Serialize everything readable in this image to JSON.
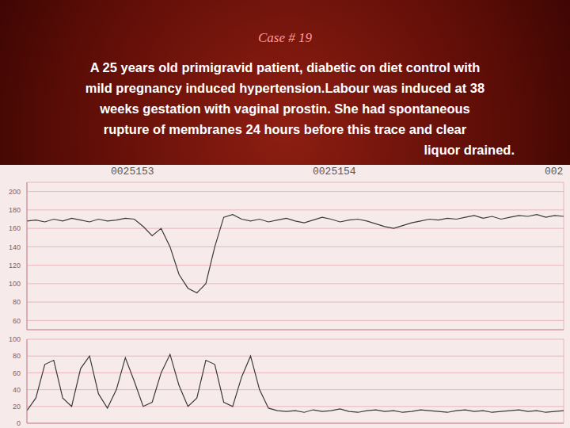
{
  "slide": {
    "title": "Case # 19",
    "text_lines": [
      "A 25 years old primigravid patient, diabetic on diet control with",
      "mild pregnancy induced hypertension.Labour was induced at 38",
      "weeks gestation with vaginal prostin. She had spontaneous",
      "rupture of membranes 24 hours before this trace and clear",
      "liquor drained."
    ],
    "page_numbers": [
      "0025153",
      "0025154",
      "002"
    ]
  },
  "chart_data": [
    {
      "type": "line",
      "grid": true,
      "tick_labels": "y",
      "color": "#3a3a3a",
      "xlim": [
        0,
        30
      ],
      "xticks": [
        0,
        1,
        2,
        3,
        4,
        5,
        6,
        7,
        8,
        9,
        10,
        11,
        12,
        13,
        14,
        15,
        16,
        17,
        18,
        19,
        20,
        21,
        22,
        23,
        24,
        25,
        26,
        27,
        28,
        29,
        30
      ],
      "ylim": [
        50,
        210
      ],
      "yticks": [
        60,
        80,
        100,
        120,
        140,
        160,
        180,
        200
      ],
      "x": [
        0,
        0.5,
        1,
        1.5,
        2,
        2.5,
        3,
        3.5,
        4,
        4.5,
        5,
        5.5,
        6,
        6.5,
        7,
        7.5,
        8,
        8.5,
        9,
        9.5,
        10,
        10.5,
        11,
        11.5,
        12,
        12.5,
        13,
        13.5,
        14,
        14.5,
        15,
        15.5,
        16,
        16.5,
        17,
        17.5,
        18,
        18.5,
        19,
        19.5,
        20,
        20.5,
        21,
        21.5,
        22,
        22.5,
        23,
        23.5,
        24,
        24.5,
        25,
        25.5,
        26,
        26.5,
        27,
        27.5,
        28,
        28.5,
        29,
        29.5,
        30
      ],
      "values": [
        168,
        169,
        167,
        170,
        168,
        171,
        169,
        167,
        170,
        168,
        169,
        171,
        170,
        162,
        152,
        160,
        140,
        110,
        95,
        90,
        100,
        140,
        172,
        175,
        170,
        168,
        170,
        167,
        169,
        171,
        168,
        166,
        169,
        172,
        170,
        167,
        169,
        170,
        168,
        165,
        162,
        160,
        163,
        166,
        168,
        170,
        169,
        171,
        170,
        172,
        174,
        171,
        173,
        170,
        172,
        174,
        173,
        175,
        172,
        174,
        173
      ]
    },
    {
      "type": "line",
      "grid": true,
      "tick_labels": "y",
      "color": "#3a3a3a",
      "xlim": [
        0,
        30
      ],
      "xticks": [
        0,
        1,
        2,
        3,
        4,
        5,
        6,
        7,
        8,
        9,
        10,
        11,
        12,
        13,
        14,
        15,
        16,
        17,
        18,
        19,
        20,
        21,
        22,
        23,
        24,
        25,
        26,
        27,
        28,
        29,
        30
      ],
      "ylim": [
        0,
        100
      ],
      "yticks": [
        0,
        20,
        40,
        60,
        80,
        100
      ],
      "x": [
        0,
        0.5,
        1,
        1.5,
        2,
        2.5,
        3,
        3.5,
        4,
        4.5,
        5,
        5.5,
        6,
        6.5,
        7,
        7.5,
        8,
        8.5,
        9,
        9.5,
        10,
        10.5,
        11,
        11.5,
        12,
        12.5,
        13,
        13.5,
        14,
        14.5,
        15,
        15.5,
        16,
        16.5,
        17,
        17.5,
        18,
        18.5,
        19,
        19.5,
        20,
        20.5,
        21,
        21.5,
        22,
        22.5,
        23,
        23.5,
        24,
        24.5,
        25,
        25.5,
        26,
        26.5,
        27,
        27.5,
        28,
        28.5,
        29,
        29.5,
        30
      ],
      "values": [
        15,
        30,
        70,
        75,
        30,
        20,
        65,
        80,
        35,
        18,
        40,
        78,
        50,
        20,
        25,
        60,
        82,
        45,
        20,
        30,
        75,
        70,
        25,
        20,
        55,
        80,
        40,
        18,
        15,
        14,
        15,
        13,
        16,
        14,
        15,
        17,
        14,
        13,
        15,
        16,
        14,
        15,
        13,
        14,
        16,
        15,
        14,
        13,
        15,
        16,
        14,
        15,
        13,
        14,
        15,
        16,
        14,
        15,
        13,
        14,
        15
      ]
    }
  ]
}
